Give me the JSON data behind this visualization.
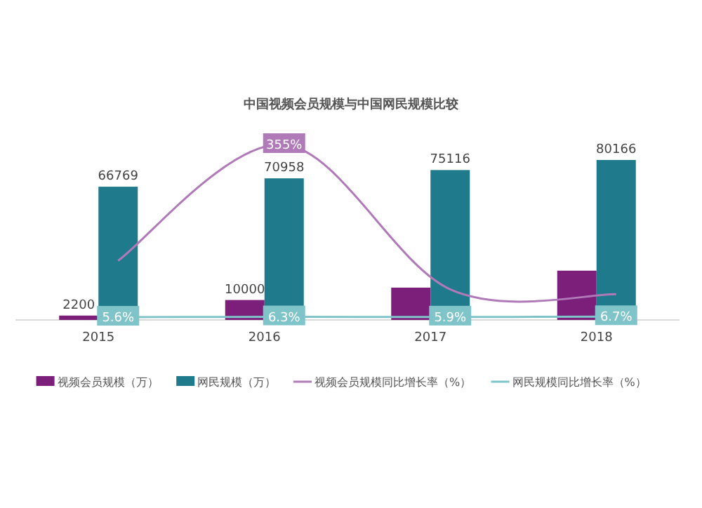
{
  "chart_data": {
    "type": "bar",
    "title": "中国视频会员规模与中国网民规模比较",
    "categories": [
      "2015",
      "2016",
      "2017",
      "2018"
    ],
    "series": [
      {
        "name": "视频会员规模（万）",
        "color": "#7b1f7a",
        "values": [
          2200,
          10000,
          16200,
          24700
        ],
        "value_labels": [
          "2200",
          "10000",
          null,
          null
        ]
      },
      {
        "name": "网民规模（万）",
        "color": "#1f7a8c",
        "values": [
          66769,
          70958,
          75116,
          80166
        ],
        "value_labels": [
          "66769",
          "70958",
          "75116",
          "80166"
        ]
      },
      {
        "name": "视频会员规模同比增长率（%）",
        "type": "line",
        "axis": "y2",
        "color": "#b07ab8",
        "values": [
          120,
          355,
          62,
          52
        ],
        "value_labels": [
          null,
          "355%",
          null,
          null
        ]
      },
      {
        "name": "网民规模同比增长率（%）",
        "type": "line",
        "axis": "y2",
        "color": "#7fc4c9",
        "values": [
          5.6,
          6.3,
          5.9,
          6.7
        ],
        "value_labels": [
          "5.6%",
          "6.3%",
          "5.9%",
          "6.7%"
        ],
        "marker": "square"
      }
    ],
    "tick_labels": "x",
    "legend": "bottom"
  }
}
